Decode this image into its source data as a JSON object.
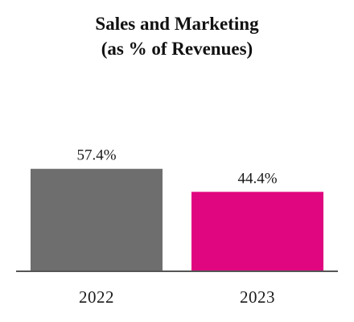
{
  "chart_data": {
    "type": "bar",
    "title": "Sales and Marketing",
    "subtitle": "(as % of Revenues)",
    "categories": [
      "2022",
      "2023"
    ],
    "values": [
      57.4,
      44.4
    ],
    "value_labels": [
      "57.4%",
      "44.4%"
    ],
    "bar_colors": [
      "#6e6e6e",
      "#e0067f"
    ],
    "axis_color": "#555555",
    "xlabel": "",
    "ylabel": "",
    "ylim": [
      0,
      100
    ],
    "grid": false,
    "legend": "none"
  }
}
